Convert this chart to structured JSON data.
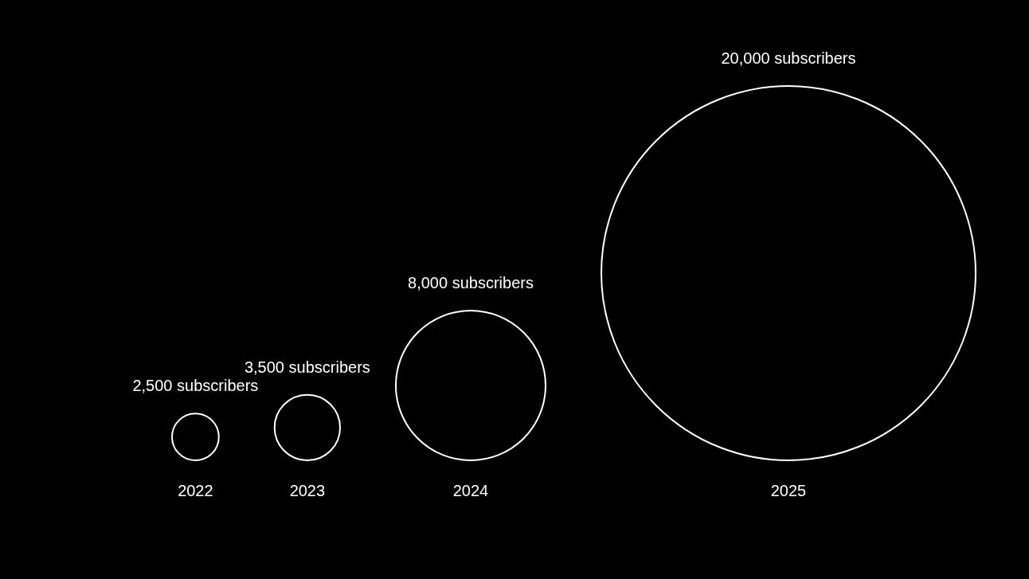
{
  "chart_data": {
    "type": "other",
    "categories": [
      "2022",
      "2023",
      "2024",
      "2025"
    ],
    "values": [
      2500,
      3500,
      8000,
      20000
    ],
    "value_labels": [
      "2,500 subscribers",
      "3,500 subscribers",
      "8,000 subscribers",
      "20,000 subscribers"
    ],
    "color": "#ffffff"
  }
}
